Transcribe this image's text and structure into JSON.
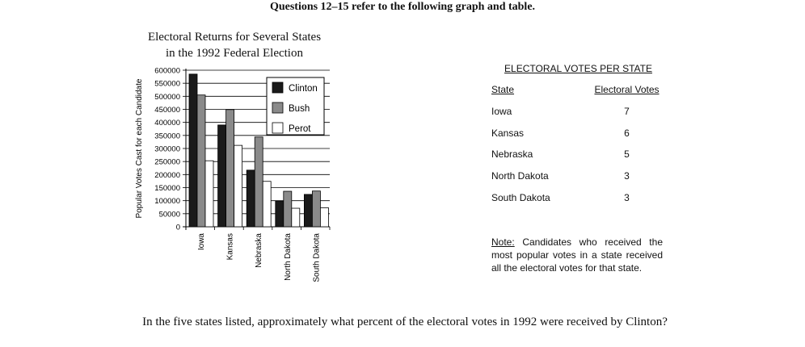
{
  "header": "Questions 12–15 refer to the following graph and table.",
  "chart_data": {
    "type": "bar",
    "title_line1": "Electoral Returns for Several States",
    "title_line2": "in the 1992 Federal Election",
    "ylabel": "Popular Votes Cast for each Candidate",
    "xlabel": "",
    "categories": [
      "Iowa",
      "Kansas",
      "Nebraska",
      "North Dakota",
      "South Dakota"
    ],
    "series": [
      {
        "name": "Clinton",
        "color": "#1a1a1a",
        "values": [
          585000,
          390000,
          217000,
          99000,
          124000
        ]
      },
      {
        "name": "Bush",
        "color": "#8a8a8a",
        "values": [
          505000,
          449000,
          344000,
          136000,
          137000
        ]
      },
      {
        "name": "Perot",
        "color": "#ffffff",
        "values": [
          253000,
          312000,
          174000,
          71000,
          73000
        ]
      }
    ],
    "ylim": [
      0,
      600000
    ],
    "yticks": [
      0,
      50000,
      100000,
      150000,
      200000,
      250000,
      300000,
      350000,
      400000,
      450000,
      500000,
      550000,
      600000
    ],
    "grid": true,
    "legend_position": "top-right"
  },
  "table": {
    "title": "ELECTORAL VOTES PER STATE",
    "headers": [
      "State",
      "Electoral Votes"
    ],
    "rows": [
      [
        "Iowa",
        "7"
      ],
      [
        "Kansas",
        "6"
      ],
      [
        "Nebraska",
        "5"
      ],
      [
        "North Dakota",
        "3"
      ],
      [
        "South Dakota",
        "3"
      ]
    ]
  },
  "note": {
    "label": "Note:",
    "text": " Candidates who received the most popular votes in a state received all the electoral votes for that state."
  },
  "question": "In the five states listed, approximately what percent of the electoral votes in 1992 were received by Clinton?"
}
